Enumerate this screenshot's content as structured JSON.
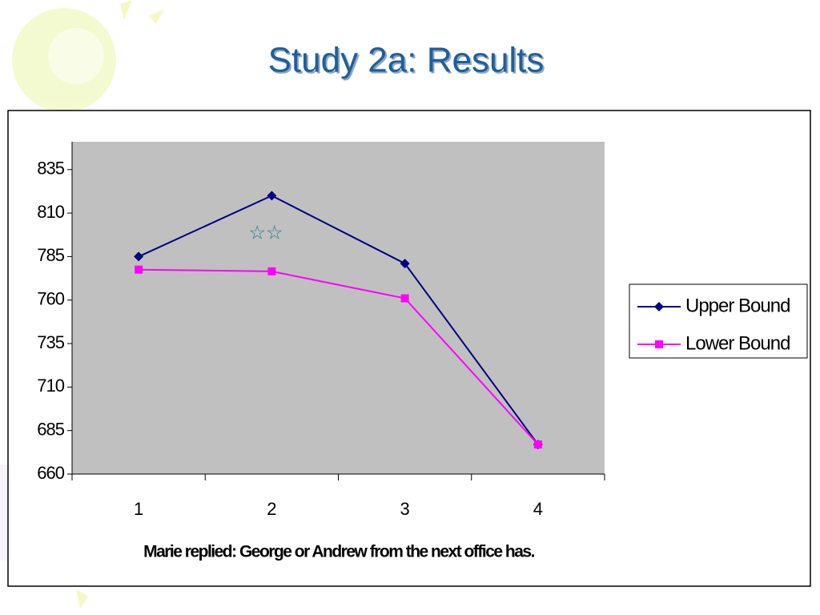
{
  "chart_data": {
    "type": "line",
    "title": "Study 2a: Results",
    "x_label": "Marie replied: George or Andrew from the next office has.",
    "annotation": "☆☆",
    "categories": [
      "1",
      "2",
      "3",
      "4"
    ],
    "series": [
      {
        "name": "Upper Bound",
        "color": "#000080",
        "marker": "diamond",
        "values": [
          785,
          820,
          781,
          677
        ]
      },
      {
        "name": "Lower Bound",
        "color": "#ff00ff",
        "marker": "square",
        "values": [
          777.5,
          776.5,
          761,
          677
        ]
      }
    ],
    "ylim": [
      660,
      851
    ],
    "yticks": [
      660,
      685,
      710,
      735,
      760,
      785,
      810,
      835
    ],
    "legend": "right"
  }
}
